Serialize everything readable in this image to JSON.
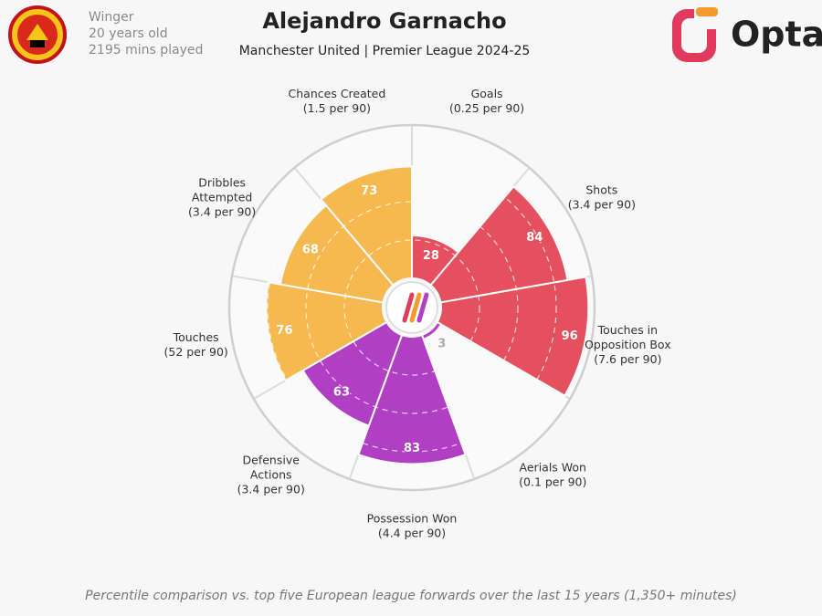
{
  "player": {
    "position": "Winger",
    "age": "20 years old",
    "minutes": "2195 mins played"
  },
  "brand": "Opta",
  "chart_data": {
    "type": "pizza",
    "title": "Alejandro Garnacho",
    "subtitle": "Manchester United | Premier League 2024-25",
    "categories": [
      [
        "Goals"
      ],
      [
        "Shots"
      ],
      [
        "Touches in",
        "Opposition Box"
      ],
      [
        "Aerials Won"
      ],
      [
        "Possession Won"
      ],
      [
        "Defensive",
        "Actions"
      ],
      [
        "Touches"
      ],
      [
        "Dribbles",
        "Attempted"
      ],
      [
        "Chances Created"
      ]
    ],
    "per90_labels": [
      "(0.25 per 90)",
      "(3.4 per 90)",
      "(7.6 per 90)",
      "(0.1 per 90)",
      "(4.4 per 90)",
      "(3.4 per 90)",
      "(52 per 90)",
      "(3.4 per 90)",
      "(1.5 per 90)"
    ],
    "values": [
      28,
      84,
      96,
      3,
      83,
      63,
      76,
      68,
      73
    ],
    "colors": [
      "#e5505f",
      "#e5505f",
      "#e5505f",
      "#b03fc3",
      "#b03fc3",
      "#b03fc3",
      "#f6b94f",
      "#f6b94f",
      "#f6b94f"
    ],
    "rlim": [
      0,
      100
    ],
    "rticks": [
      25,
      50,
      75,
      100
    ],
    "footnote": "Percentile comparison vs. top five European league forwards over the last 15 years (1,350+ minutes)"
  }
}
